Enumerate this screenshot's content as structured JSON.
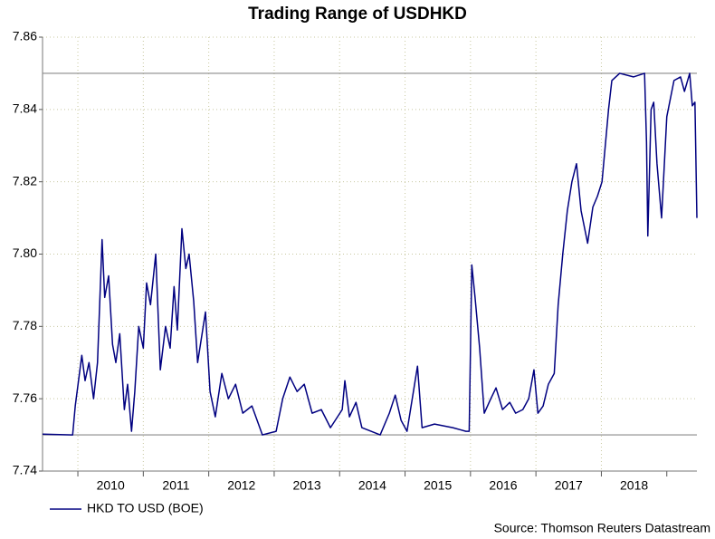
{
  "chart_data": {
    "type": "line",
    "title": "Trading Range of USDHKD",
    "source": "Source: Thomson Reuters Datastream",
    "x": [
      2009.46,
      2009.92,
      2009.96,
      2010.06,
      2010.11,
      2010.17,
      2010.24,
      2010.3,
      2010.37,
      2010.41,
      2010.47,
      2010.53,
      2010.58,
      2010.64,
      2010.71,
      2010.76,
      2010.82,
      2010.87,
      2010.93,
      2011.0,
      2011.05,
      2011.11,
      2011.19,
      2011.26,
      2011.34,
      2011.41,
      2011.47,
      2011.52,
      2011.59,
      2011.65,
      2011.7,
      2011.77,
      2011.83,
      2011.95,
      2012.02,
      2012.1,
      2012.2,
      2012.3,
      2012.41,
      2012.52,
      2012.66,
      2012.82,
      2013.03,
      2013.13,
      2013.24,
      2013.35,
      2013.46,
      2013.58,
      2013.72,
      2013.86,
      2014.04,
      2014.08,
      2014.15,
      2014.25,
      2014.34,
      2014.48,
      2014.62,
      2014.76,
      2014.85,
      2014.94,
      2015.03,
      2015.19,
      2015.26,
      2015.45,
      2015.73,
      2015.93,
      2015.98,
      2016.02,
      2016.07,
      2016.14,
      2016.21,
      2016.31,
      2016.39,
      2016.49,
      2016.6,
      2016.69,
      2016.8,
      2016.89,
      2016.97,
      2017.03,
      2017.11,
      2017.19,
      2017.28,
      2017.34,
      2017.41,
      2017.48,
      2017.55,
      2017.62,
      2017.69,
      2017.79,
      2017.87,
      2017.94,
      2018.01,
      2018.11,
      2018.16,
      2018.28,
      2018.49,
      2018.66,
      2018.69,
      2018.71,
      2018.76,
      2018.8,
      2018.85,
      2018.92,
      2019.0,
      2019.11,
      2019.21,
      2019.27,
      2019.35,
      2019.39,
      2019.43,
      2019.46
    ],
    "series": [
      {
        "name": "HKD TO USD (BOE)",
        "color": "#000080",
        "values": [
          7.7502,
          7.75,
          7.758,
          7.772,
          7.765,
          7.77,
          7.76,
          7.77,
          7.804,
          7.788,
          7.794,
          7.775,
          7.77,
          7.778,
          7.757,
          7.764,
          7.751,
          7.762,
          7.78,
          7.774,
          7.792,
          7.786,
          7.8,
          7.768,
          7.78,
          7.774,
          7.791,
          7.779,
          7.807,
          7.796,
          7.8,
          7.787,
          7.77,
          7.784,
          7.762,
          7.755,
          7.767,
          7.76,
          7.764,
          7.756,
          7.758,
          7.75,
          7.751,
          7.76,
          7.766,
          7.762,
          7.764,
          7.756,
          7.757,
          7.752,
          7.757,
          7.765,
          7.755,
          7.759,
          7.752,
          7.751,
          7.75,
          7.756,
          7.761,
          7.754,
          7.751,
          7.769,
          7.752,
          7.753,
          7.752,
          7.751,
          7.751,
          7.797,
          7.788,
          7.774,
          7.756,
          7.76,
          7.763,
          7.757,
          7.759,
          7.756,
          7.757,
          7.76,
          7.768,
          7.756,
          7.758,
          7.764,
          7.767,
          7.786,
          7.8,
          7.812,
          7.82,
          7.825,
          7.812,
          7.803,
          7.813,
          7.816,
          7.82,
          7.84,
          7.848,
          7.85,
          7.849,
          7.85,
          7.831,
          7.805,
          7.84,
          7.842,
          7.825,
          7.81,
          7.838,
          7.848,
          7.849,
          7.845,
          7.85,
          7.841,
          7.842,
          7.81
        ]
      }
    ],
    "xlim": [
      2009.46,
      2019.46
    ],
    "xticks": [
      2010,
      2011,
      2012,
      2013,
      2014,
      2015,
      2016,
      2017,
      2018
    ],
    "ylim": [
      7.74,
      7.86
    ],
    "yticks": [
      7.74,
      7.76,
      7.78,
      {
        "value": 7.8,
        "label": "7.80"
      },
      7.82,
      7.84,
      7.86
    ],
    "hlines": [
      7.75,
      7.85
    ],
    "grid": true,
    "legend": "bottom-left"
  }
}
